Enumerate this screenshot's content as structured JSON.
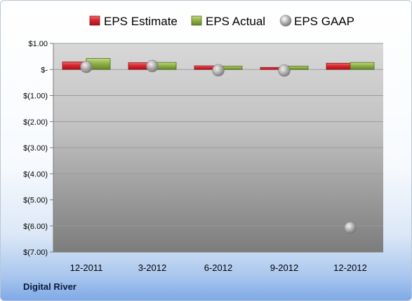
{
  "company_label": "Digital River",
  "colors": {
    "estimate_fill": "#d7262e",
    "estimate_edge": "#8e1116",
    "actual_fill": "#8fb24a",
    "actual_edge": "#4d6a1a",
    "gaap_fill": "#a9a9a9",
    "gridline": "#9a9a9a",
    "axis": "#7a7a7a"
  },
  "chart_data": {
    "type": "bar",
    "categories": [
      "12-2011",
      "3-2012",
      "6-2012",
      "9-2012",
      "12-2012"
    ],
    "series": [
      {
        "name": "EPS Estimate",
        "kind": "bar",
        "values": [
          0.29,
          0.26,
          0.14,
          0.08,
          0.24
        ]
      },
      {
        "name": "EPS Actual",
        "kind": "bar",
        "values": [
          0.42,
          0.27,
          0.13,
          0.13,
          0.27
        ]
      },
      {
        "name": "EPS GAAP",
        "kind": "scatter",
        "values": [
          0.1,
          0.13,
          -0.03,
          -0.04,
          -6.07
        ]
      }
    ],
    "y_ticks": [
      1,
      0,
      -1,
      -2,
      -3,
      -4,
      -5,
      -6,
      -7
    ],
    "y_tick_labels": [
      "$1.00",
      "$-",
      "$(1.00)",
      "$(2.00)",
      "$(3.00)",
      "$(4.00)",
      "$(5.00)",
      "$(6.00)",
      "$(7.00)"
    ],
    "ylim": [
      -7,
      1
    ],
    "grid": true,
    "legend_position": "top",
    "title": "",
    "xlabel": "",
    "ylabel": ""
  }
}
